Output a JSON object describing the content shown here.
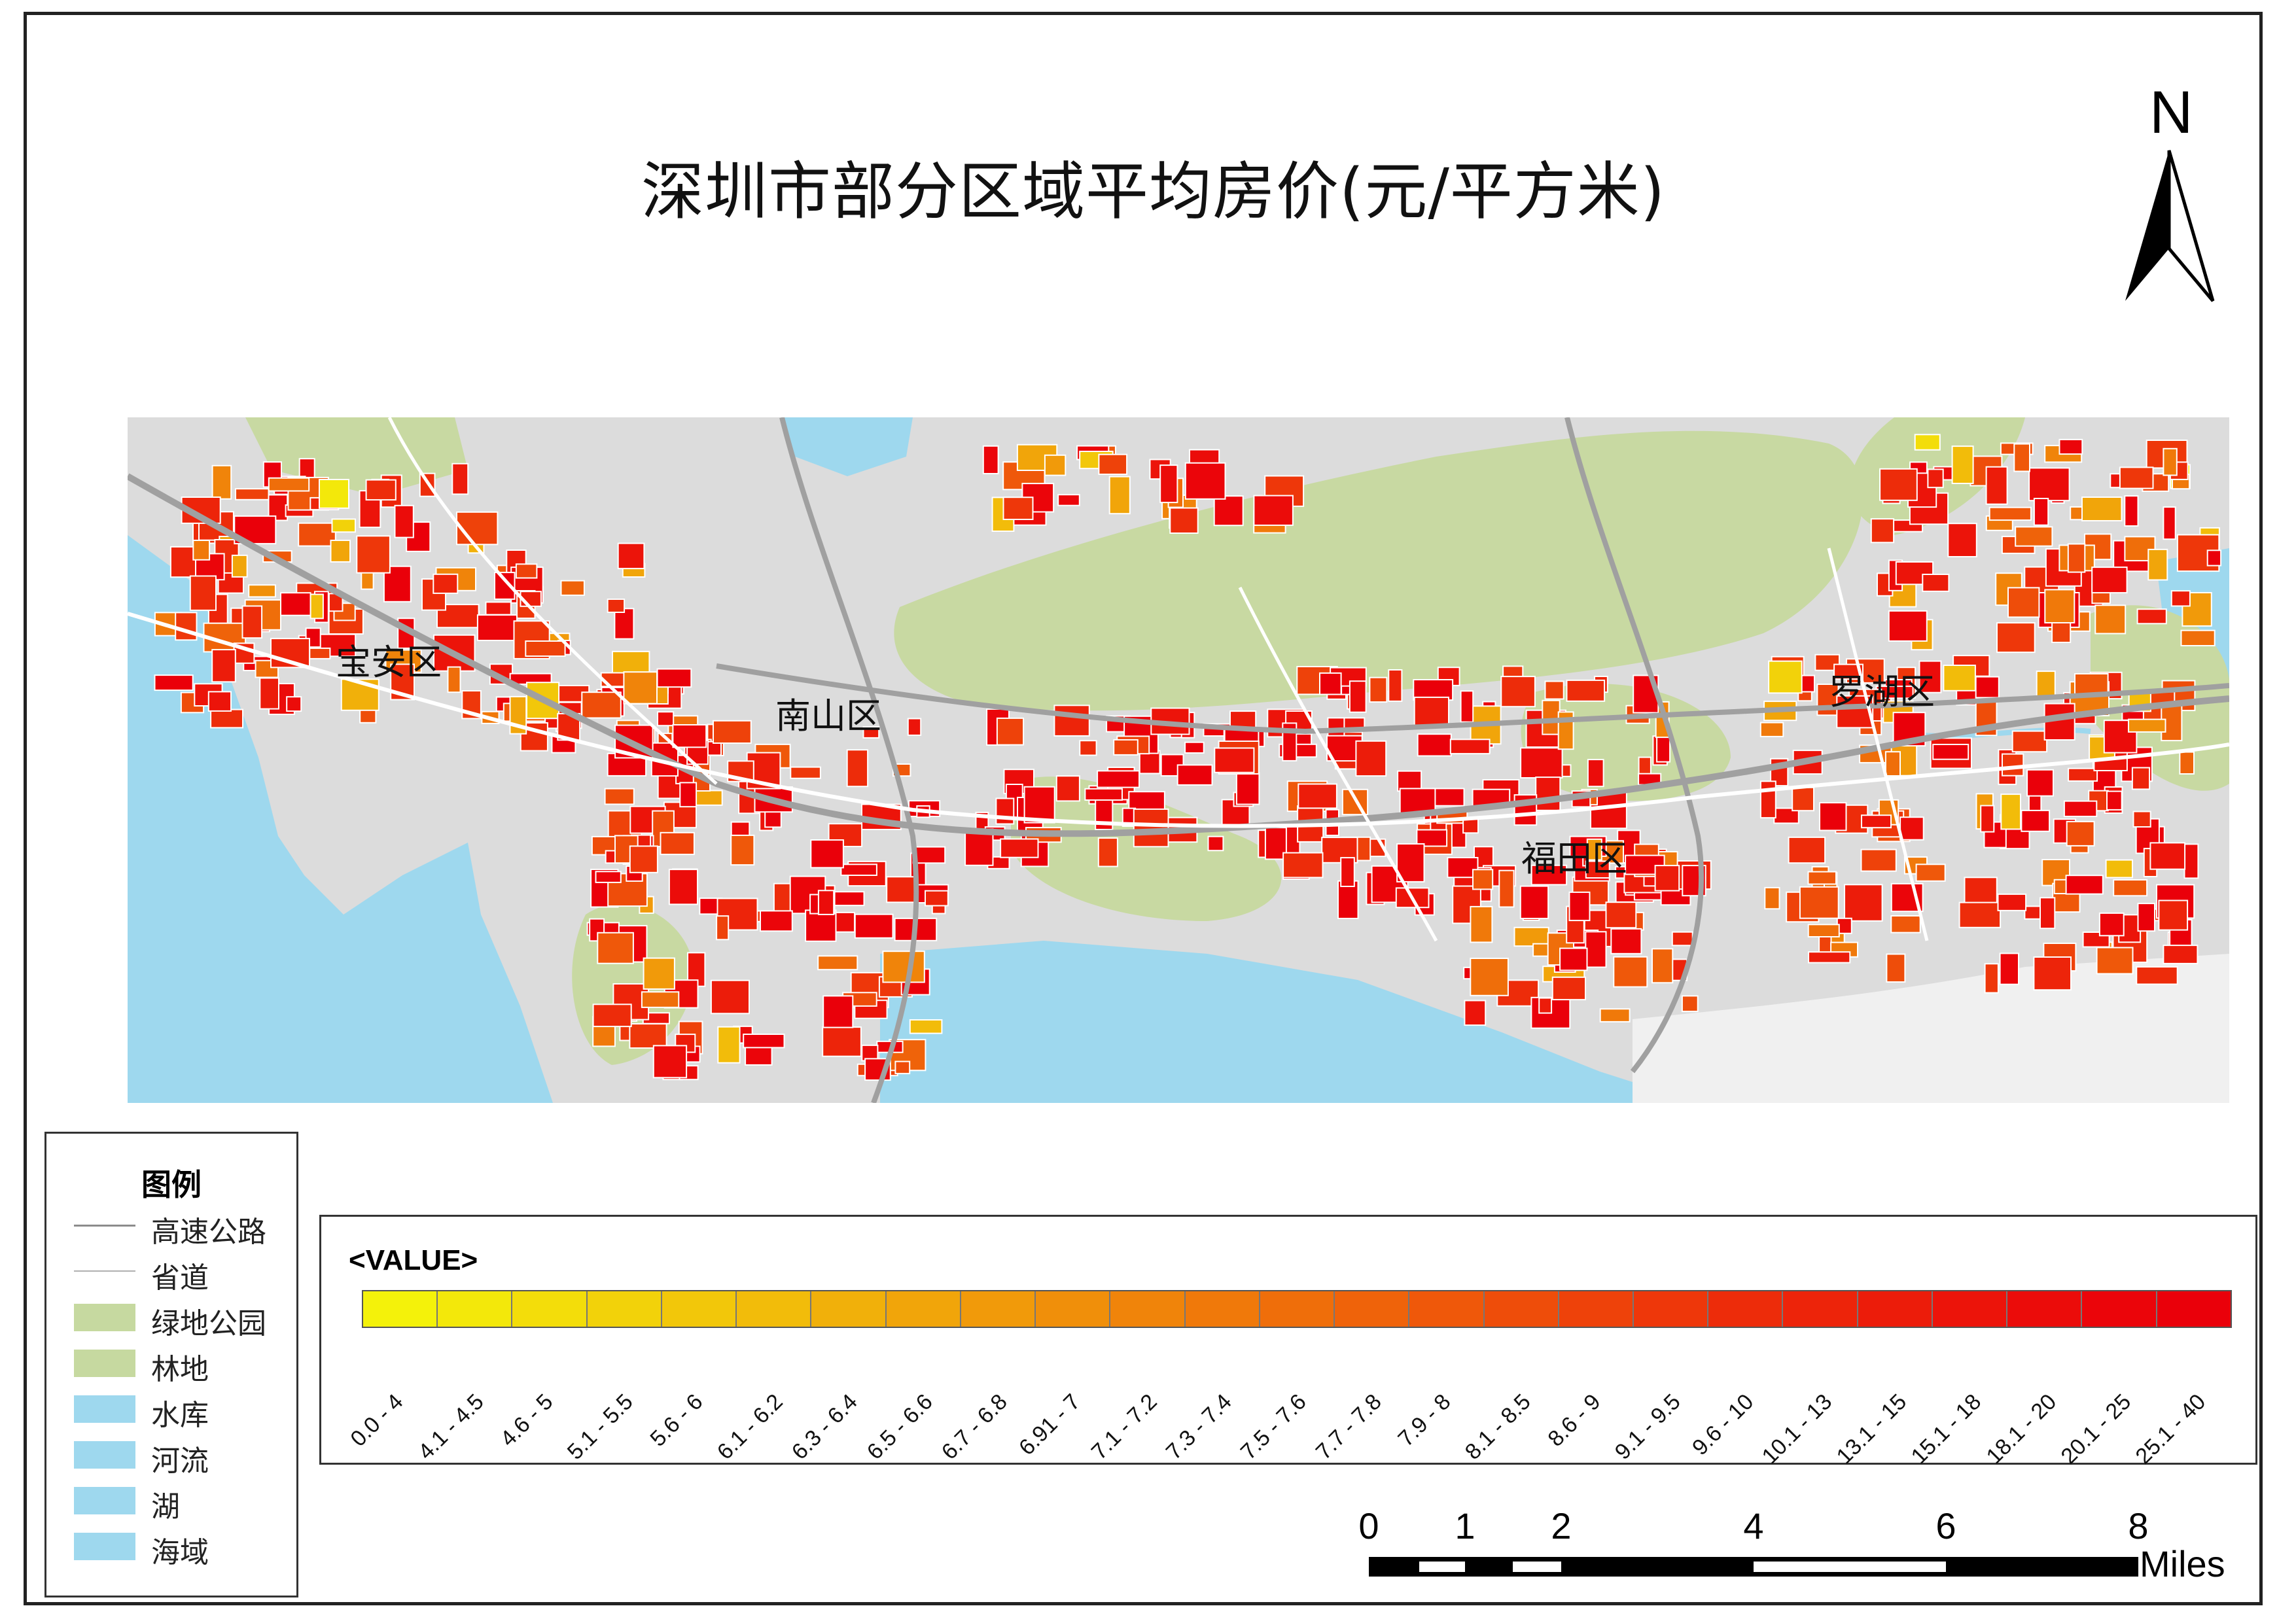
{
  "title": "深圳市部分区域平均房价(元/平方米)",
  "north_arrow": {
    "label": "N"
  },
  "map": {
    "districts": [
      {
        "name": "宝安区"
      },
      {
        "name": "南山区"
      },
      {
        "name": "福田区"
      },
      {
        "name": "罗湖区"
      }
    ],
    "colors": {
      "sea": "#9ed8ee",
      "park": "#c8d9a2",
      "land": "#dcdcdc",
      "road": "#ffffff"
    }
  },
  "legend": {
    "title": "图例",
    "items": [
      {
        "label": "高速公路",
        "kind": "line",
        "color": "#8c8c8c"
      },
      {
        "label": "省道",
        "kind": "thin-line",
        "color": "#b0b0b0"
      },
      {
        "label": "绿地公园",
        "kind": "fill",
        "color": "#c6d9a0"
      },
      {
        "label": "林地",
        "kind": "fill",
        "color": "#c6d9a0"
      },
      {
        "label": "水库",
        "kind": "fill",
        "color": "#9ed8ee"
      },
      {
        "label": "河流",
        "kind": "fill",
        "color": "#9ed8ee"
      },
      {
        "label": "湖",
        "kind": "fill",
        "color": "#9ed8ee"
      },
      {
        "label": "海域",
        "kind": "fill",
        "color": "#9ed8ee"
      }
    ]
  },
  "value_ramp": {
    "title": "<VALUE>",
    "classes": [
      {
        "label": "0.0 - 4",
        "color": "#f4f20a"
      },
      {
        "label": "4.1 - 4.5",
        "color": "#f3e80a"
      },
      {
        "label": "4.6 - 5",
        "color": "#f3dd0a"
      },
      {
        "label": "5.1 - 5.5",
        "color": "#f2d20a"
      },
      {
        "label": "5.6 - 6",
        "color": "#f2c70a"
      },
      {
        "label": "6.1 - 6.2",
        "color": "#f2bc0a"
      },
      {
        "label": "6.3 - 6.4",
        "color": "#f1b00a"
      },
      {
        "label": "6.5 - 6.6",
        "color": "#f1a50a"
      },
      {
        "label": "6.7 - 6.8",
        "color": "#f19a0a"
      },
      {
        "label": "6.91 - 7",
        "color": "#f08f0a"
      },
      {
        "label": "7.1 - 7.2",
        "color": "#f0840a"
      },
      {
        "label": "7.3 - 7.4",
        "color": "#f0790a"
      },
      {
        "label": "7.5 - 7.6",
        "color": "#ef6e0a"
      },
      {
        "label": "7.7 - 7.8",
        "color": "#ef630a"
      },
      {
        "label": "7.9 - 8",
        "color": "#ef580a"
      },
      {
        "label": "8.1 - 8.5",
        "color": "#ee4d0a"
      },
      {
        "label": "8.6 - 9",
        "color": "#ee420a"
      },
      {
        "label": "9.1 - 9.5",
        "color": "#ee370a"
      },
      {
        "label": "9.6 - 10",
        "color": "#ed2c0a"
      },
      {
        "label": "10.1 - 13",
        "color": "#ed240a"
      },
      {
        "label": "13.1 - 15",
        "color": "#ec1c0a"
      },
      {
        "label": "15.1 - 18",
        "color": "#ec140a"
      },
      {
        "label": "18.1 - 20",
        "color": "#eb0c0a"
      },
      {
        "label": "20.1 - 25",
        "color": "#eb050a"
      },
      {
        "label": "25.1 - 40",
        "color": "#ea000a"
      }
    ]
  },
  "scale_bar": {
    "ticks": [
      "0",
      "1",
      "2",
      "4",
      "6",
      "8"
    ],
    "unit": "Miles"
  }
}
